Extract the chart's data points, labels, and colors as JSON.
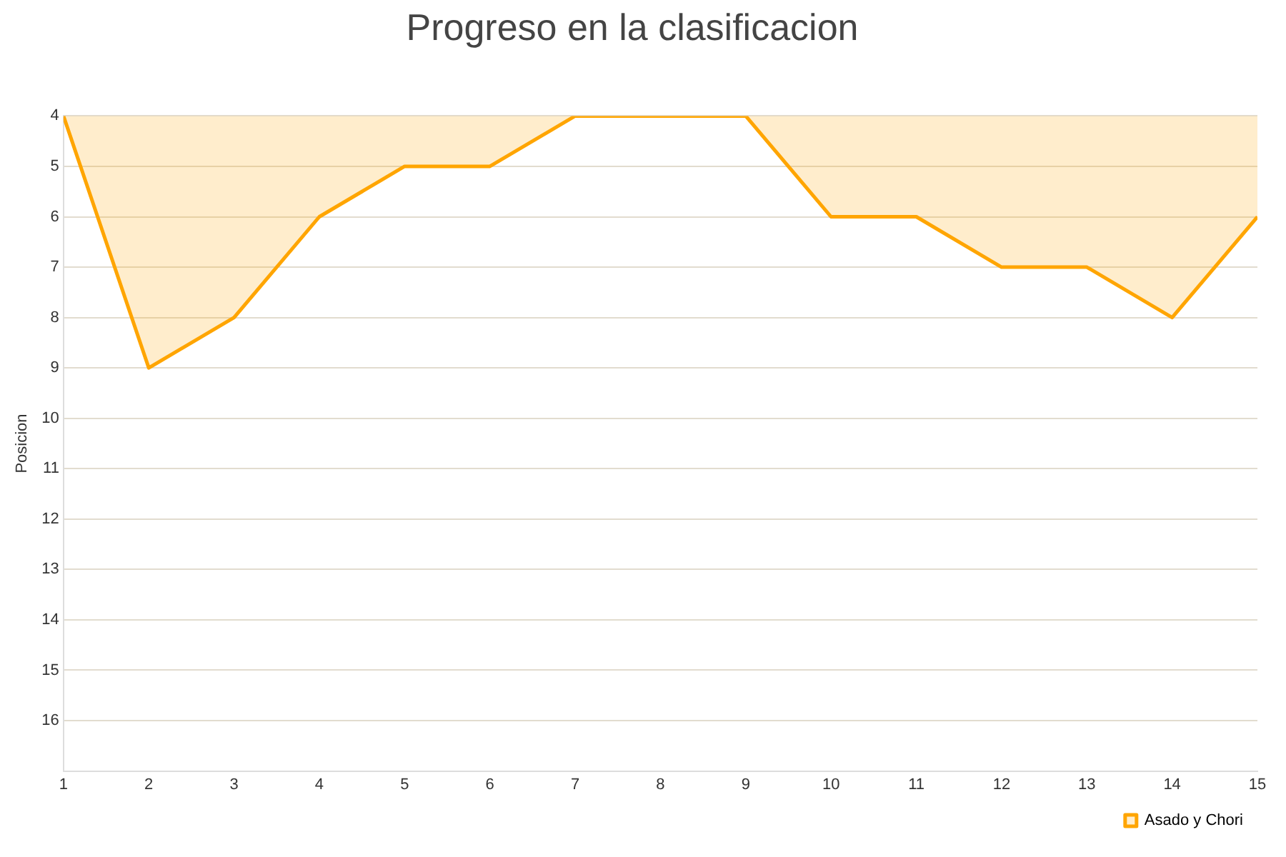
{
  "chart_data": {
    "type": "area",
    "title": "Progreso en la clasificacion",
    "ylabel": "Posicion",
    "x": [
      1,
      2,
      3,
      4,
      5,
      6,
      7,
      8,
      9,
      10,
      11,
      12,
      13,
      14,
      15
    ],
    "series": [
      {
        "name": "Asado y Chori",
        "color": "#ffa500",
        "values": [
          4,
          9,
          8,
          6,
          5,
          5,
          4,
          4,
          4,
          6,
          6,
          7,
          7,
          8,
          6
        ]
      }
    ],
    "xlim": [
      1,
      15
    ],
    "xticks": [
      1,
      2,
      3,
      4,
      5,
      6,
      7,
      8,
      9,
      10,
      11,
      12,
      13,
      14,
      15
    ],
    "ylim": [
      17,
      4
    ],
    "yticks": [
      4,
      5,
      6,
      7,
      8,
      9,
      10,
      11,
      12,
      13,
      14,
      15,
      16
    ],
    "grid": "y",
    "legend": "bottom right"
  }
}
